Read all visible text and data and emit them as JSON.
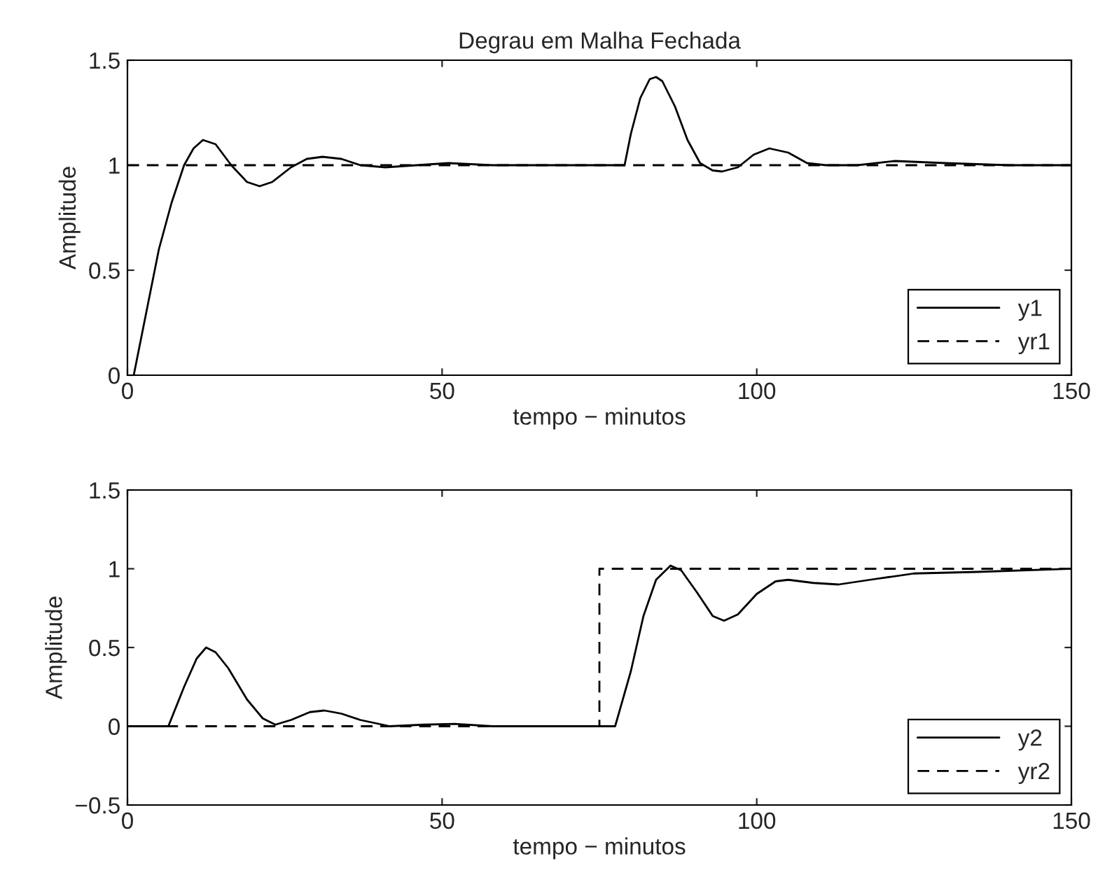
{
  "chart_data": [
    {
      "type": "line",
      "title": "Degrau em Malha Fechada",
      "xlabel": "tempo − minutos",
      "ylabel": "Amplitude",
      "xlim": [
        0,
        150
      ],
      "ylim": [
        0,
        1.5
      ],
      "xticks": [
        0,
        50,
        100,
        150
      ],
      "yticks": [
        0,
        0.5,
        1,
        1.5
      ],
      "grid": false,
      "legend": "bottom right",
      "series": [
        {
          "name": "y1",
          "color": "#000000",
          "line_style": "solid",
          "x": [
            1,
            3,
            5,
            7,
            9,
            10.5,
            12,
            14,
            16.5,
            19,
            21,
            23,
            26,
            28.5,
            31,
            34,
            37,
            41,
            46,
            51,
            58,
            78,
            79,
            80,
            81.5,
            83,
            84,
            85,
            87,
            89,
            91,
            93,
            94.5,
            97,
            99.5,
            102,
            105,
            108,
            111,
            116,
            122,
            130,
            140,
            150
          ],
          "values": [
            0,
            0.3,
            0.6,
            0.82,
            1.0,
            1.08,
            1.12,
            1.1,
            1.0,
            0.92,
            0.9,
            0.92,
            0.99,
            1.03,
            1.04,
            1.03,
            1.0,
            0.99,
            1.0,
            1.01,
            1.0,
            1.0,
            1.0,
            1.15,
            1.32,
            1.41,
            1.42,
            1.4,
            1.28,
            1.12,
            1.01,
            0.975,
            0.97,
            0.99,
            1.05,
            1.08,
            1.06,
            1.01,
            1.0,
            1.0,
            1.02,
            1.01,
            1.0,
            1.0
          ]
        },
        {
          "name": "yr1",
          "color": "#000000",
          "line_style": "dashed",
          "x": [
            0,
            150
          ],
          "values": [
            1,
            1
          ]
        }
      ]
    },
    {
      "type": "line",
      "xlabel": "tempo − minutos",
      "ylabel": "Amplitude",
      "xlim": [
        0,
        150
      ],
      "ylim": [
        -0.5,
        1.5
      ],
      "xticks": [
        0,
        50,
        100,
        150
      ],
      "yticks": [
        {
          "value": -0.5,
          "label": "−0.5"
        },
        0,
        0.5,
        1,
        1.5
      ],
      "grid": false,
      "legend": "bottom right",
      "series": [
        {
          "name": "y2",
          "color": "#000000",
          "line_style": "solid",
          "x": [
            0,
            6.5,
            9,
            11,
            12.5,
            14,
            16,
            19,
            21.5,
            23.5,
            26,
            29,
            31.3,
            34,
            37,
            41.7,
            47,
            52,
            58,
            77.5,
            80,
            82,
            84,
            86.3,
            88,
            90.5,
            93,
            94.8,
            97,
            100,
            103,
            105,
            109,
            113,
            118,
            125,
            135,
            150
          ],
          "values": [
            0,
            0,
            0.25,
            0.43,
            0.5,
            0.47,
            0.37,
            0.17,
            0.05,
            0.01,
            0.04,
            0.09,
            0.1,
            0.08,
            0.04,
            0.0,
            0.01,
            0.015,
            0.0,
            0,
            0.35,
            0.7,
            0.93,
            1.02,
            0.99,
            0.85,
            0.7,
            0.67,
            0.71,
            0.84,
            0.92,
            0.93,
            0.91,
            0.9,
            0.93,
            0.97,
            0.98,
            1.0
          ]
        },
        {
          "name": "yr2",
          "color": "#000000",
          "line_style": "dashed",
          "x": [
            0,
            75,
            75,
            150
          ],
          "values": [
            0,
            0,
            1,
            1
          ]
        }
      ]
    }
  ]
}
